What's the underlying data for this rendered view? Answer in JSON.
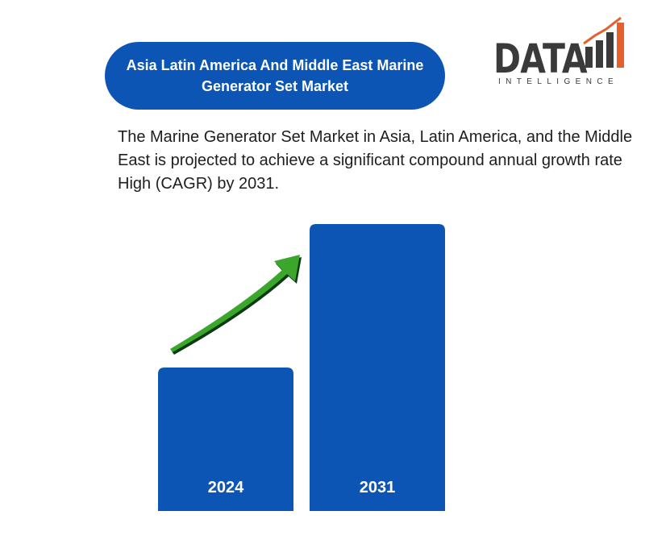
{
  "header": {
    "title": "Asia Latin America And Middle East Marine Generator Set Market"
  },
  "logo": {
    "word": "DATA",
    "subtitle": "INTELLIGENCE",
    "accent_color": "#e5602a",
    "text_color": "#3a3a3a"
  },
  "description": "The Marine Generator Set Market in Asia, Latin America, and the Middle East is projected to achieve a significant compound annual growth rate High (CAGR) by 2031.",
  "colors": {
    "bar": "#0d55b5",
    "arrow": "#3aa62a",
    "arrow_dark": "#0c3a12"
  },
  "chart_data": {
    "type": "bar",
    "categories": [
      "2024",
      "2031"
    ],
    "values": [
      45,
      90
    ],
    "ylim": [
      0,
      90
    ],
    "title": "",
    "xlabel": "",
    "ylabel": "",
    "grid": false,
    "legend": "none",
    "annotation": "upward-trend-arrow"
  }
}
